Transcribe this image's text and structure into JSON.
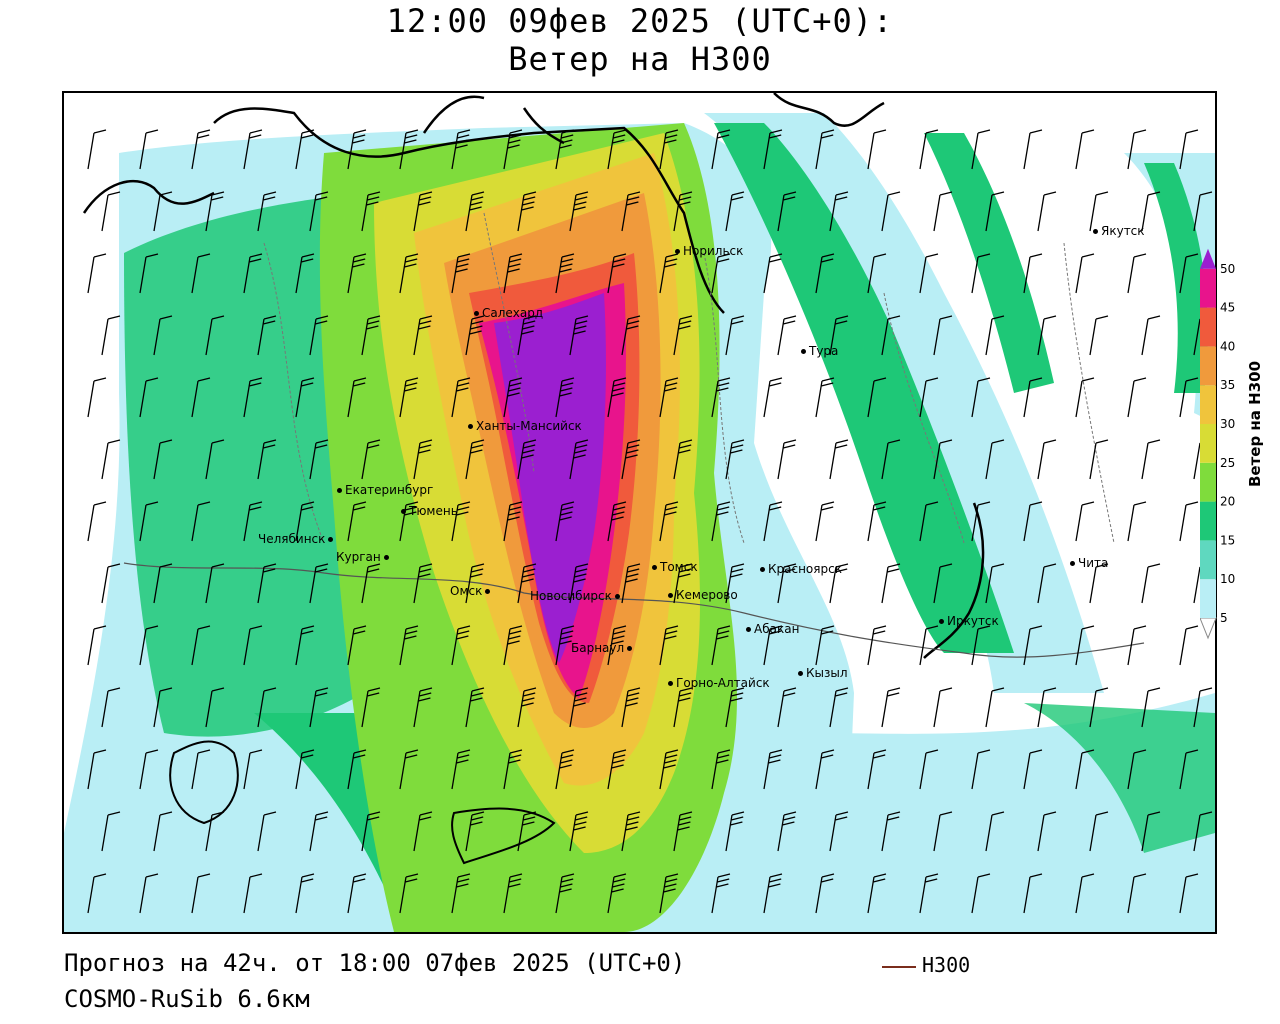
{
  "title": {
    "line1": "12:00 09фев 2025 (UTC+0):",
    "line2": "Ветер на H300"
  },
  "footer": {
    "forecast": "Прогноз на 42ч. от 18:00 07фев 2025 (UTC+0)",
    "model": "COSMO-RuSib 6.6км"
  },
  "legend": {
    "label": "H300",
    "line_color": "#7a2d1c"
  },
  "colorbar": {
    "label": "Ветер на H300",
    "ticks": [
      "5",
      "10",
      "15",
      "20",
      "25",
      "30",
      "35",
      "40",
      "45",
      "50"
    ],
    "colors": [
      "#ffffff",
      "#b9eef5",
      "#5fd8bf",
      "#1ec877",
      "#7fdc3c",
      "#d8dc35",
      "#f0c43c",
      "#f09a3c",
      "#f05a3c",
      "#e8148c",
      "#9b1fd0"
    ]
  },
  "cities": [
    {
      "id": "yakutsk",
      "name": "Якутск"
    },
    {
      "id": "norilsk",
      "name": "Норильск"
    },
    {
      "id": "salekhard",
      "name": "Салехард"
    },
    {
      "id": "tura",
      "name": "Тура"
    },
    {
      "id": "khanty",
      "name": "Ханты-Мансийск"
    },
    {
      "id": "ekaterinburg",
      "name": "Екатеринбург"
    },
    {
      "id": "tyumen",
      "name": "Тюмень"
    },
    {
      "id": "chelyabinsk",
      "name": "Челябинск"
    },
    {
      "id": "kurgan",
      "name": "Курган"
    },
    {
      "id": "tomsk",
      "name": "Томск"
    },
    {
      "id": "krasnoyarsk",
      "name": "Красноярск"
    },
    {
      "id": "chita",
      "name": "Чита"
    },
    {
      "id": "omsk",
      "name": "Омск"
    },
    {
      "id": "novosibirsk",
      "name": "Новосибирск"
    },
    {
      "id": "kemerovo",
      "name": "Кемерово"
    },
    {
      "id": "irkutsk",
      "name": "Иркутск"
    },
    {
      "id": "abakan",
      "name": "Абакан"
    },
    {
      "id": "barnaul",
      "name": "Барнаул"
    },
    {
      "id": "kyzyl",
      "name": "Кызыл"
    },
    {
      "id": "gorno",
      "name": "Горно-Алтайск"
    }
  ]
}
